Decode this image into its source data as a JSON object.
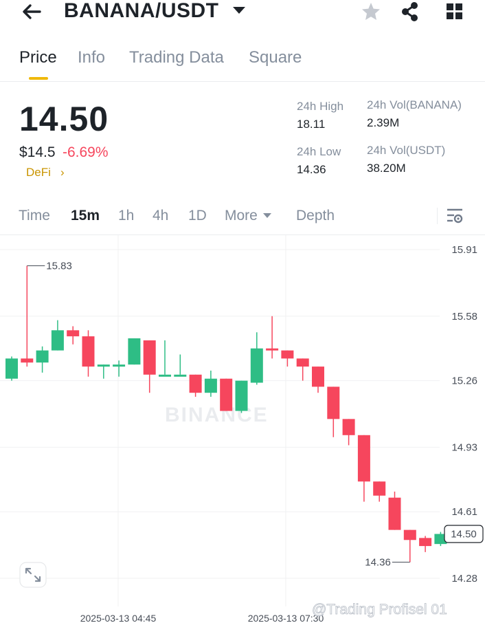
{
  "header": {
    "pair": "BANANA/USDT",
    "icons": [
      "back-arrow-icon",
      "dropdown-caret-icon",
      "star-icon",
      "share-icon",
      "grid-icon"
    ]
  },
  "tabs": [
    {
      "label": "Price",
      "active": true
    },
    {
      "label": "Info",
      "active": false
    },
    {
      "label": "Trading Data",
      "active": false
    },
    {
      "label": "Square",
      "active": false
    }
  ],
  "ticker": {
    "last_price": "14.50",
    "fiat_price": "$14.5",
    "change": "-6.69%",
    "tag": "DeFi",
    "tag_arrow": "›",
    "stats": {
      "high_label": "24h High",
      "high_value": "18.11",
      "low_label": "24h Low",
      "low_value": "14.36",
      "vol_base_label": "24h Vol(BANANA)",
      "vol_base_value": "2.39M",
      "vol_quote_label": "24h Vol(USDT)",
      "vol_quote_value": "38.20M"
    }
  },
  "intervals": [
    {
      "label": "Time",
      "active": false
    },
    {
      "label": "15m",
      "active": true
    },
    {
      "label": "1h",
      "active": false
    },
    {
      "label": "4h",
      "active": false
    },
    {
      "label": "1D",
      "active": false
    },
    {
      "label": "More",
      "active": false
    },
    {
      "label": "Depth",
      "active": false
    }
  ],
  "colors": {
    "up": "#2ebd85",
    "down": "#f6465d",
    "accent": "#f0b90b"
  },
  "chart_data": {
    "type": "candlestick",
    "interval": "15m",
    "y_ticks": [
      "15.91",
      "15.58",
      "15.26",
      "14.93",
      "14.61",
      "14.28"
    ],
    "x_ticks": [
      "2025-03-13 04:45",
      "2025-03-13 07:30"
    ],
    "last_price_label": "14.50",
    "high_marker": "15.83",
    "low_marker": "14.36",
    "candles": [
      [
        15.27,
        15.37,
        15.26,
        15.38
      ],
      [
        15.37,
        15.35,
        15.33,
        15.83
      ],
      [
        15.35,
        15.41,
        15.3,
        15.43
      ],
      [
        15.41,
        15.51,
        15.41,
        15.56
      ],
      [
        15.51,
        15.48,
        15.44,
        15.53
      ],
      [
        15.48,
        15.33,
        15.28,
        15.51
      ],
      [
        15.33,
        15.34,
        15.27,
        15.34
      ],
      [
        15.34,
        15.34,
        15.28,
        15.36
      ],
      [
        15.34,
        15.47,
        15.34,
        15.47
      ],
      [
        15.46,
        15.29,
        15.2,
        15.46
      ],
      [
        15.29,
        15.29,
        15.29,
        15.46
      ],
      [
        15.29,
        15.29,
        15.29,
        15.39
      ],
      [
        15.29,
        15.2,
        15.18,
        15.29
      ],
      [
        15.2,
        15.27,
        15.18,
        15.31
      ],
      [
        15.27,
        15.11,
        15.11,
        15.27
      ],
      [
        15.11,
        15.26,
        15.1,
        15.26
      ],
      [
        15.25,
        15.42,
        15.24,
        15.5
      ],
      [
        15.42,
        15.41,
        15.37,
        15.58
      ],
      [
        15.41,
        15.37,
        15.33,
        15.41
      ],
      [
        15.37,
        15.33,
        15.26,
        15.37
      ],
      [
        15.33,
        15.23,
        15.2,
        15.33
      ],
      [
        15.23,
        15.07,
        14.98,
        15.23
      ],
      [
        15.07,
        14.99,
        14.94,
        15.07
      ],
      [
        14.99,
        14.76,
        14.66,
        14.99
      ],
      [
        14.76,
        14.69,
        14.66,
        14.76
      ],
      [
        14.68,
        14.52,
        14.52,
        14.71
      ],
      [
        14.52,
        14.47,
        14.36,
        14.52
      ],
      [
        14.48,
        14.44,
        14.41,
        14.49
      ],
      [
        14.45,
        14.5,
        14.44,
        14.51
      ]
    ]
  },
  "watermark": "BINANCE",
  "credit": "@Trading Profisel 01"
}
